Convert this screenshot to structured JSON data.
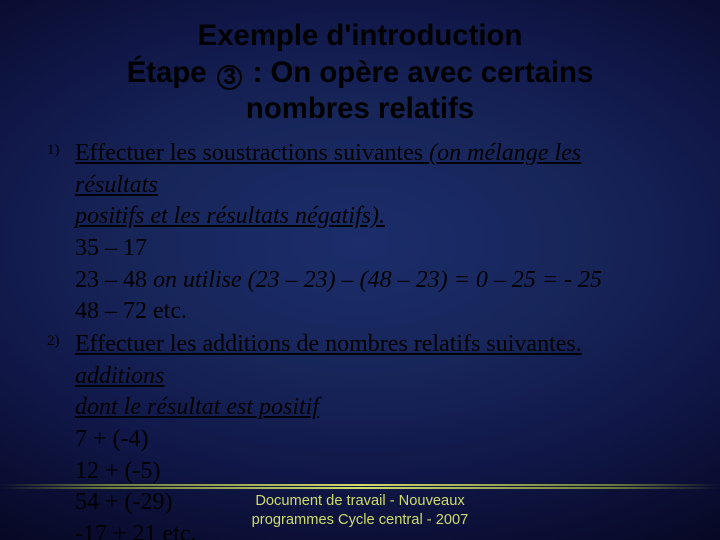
{
  "colors": {
    "bg_center": "#1b2d6b",
    "bg_edge": "#050620",
    "title_color": "#000000",
    "body_color": "#000000",
    "accent_line": "#cddc6b",
    "footer_color": "#cddc6b"
  },
  "typography": {
    "title_family": "Arial",
    "title_weight": 900,
    "title_fontsize_pt": 22,
    "body_family": "Times New Roman",
    "body_fontsize_pt": 18,
    "list_marker_fontsize_pt": 11,
    "footer_fontsize_pt": 11
  },
  "title": {
    "line1": "Exemple d'introduction",
    "line2_pre": "Étape ",
    "line2_circled": "3",
    "line2_post": " : On opère avec certains",
    "line3": "nombres relatifs"
  },
  "items": [
    {
      "lead_plain": "Effectuer les soustractions suivantes ",
      "lead_ital_a": "(on mélange les résultats",
      "lead_ital_b": "positifs et les résultats négatifs).",
      "lines": [
        {
          "text": "35 – 17",
          "italic": false
        },
        {
          "prefix": "23 – 48   ",
          "italic_tail": "on utilise (23 – 23) – (48 – 23) = 0 – 25 = - 25"
        },
        {
          "text": "48 – 72  etc.",
          "italic": false
        }
      ]
    },
    {
      "lead_plain": "Effectuer les additions de nombres relatifs suivantes. ",
      "lead_ital_a": "additions",
      "lead_ital_b": "dont le résultat est positif",
      "lines": [
        {
          "text": "7 + (-4)",
          "italic": false
        },
        {
          "text": "12 + (-5)",
          "italic": false
        },
        {
          "text": "54 + (-29)",
          "italic": false
        },
        {
          "text": "-17 + 21 etc.",
          "italic": false
        }
      ]
    }
  ],
  "footer": {
    "line1": "Document de travail - Nouveaux",
    "line2": "programmes Cycle central - 2007"
  }
}
